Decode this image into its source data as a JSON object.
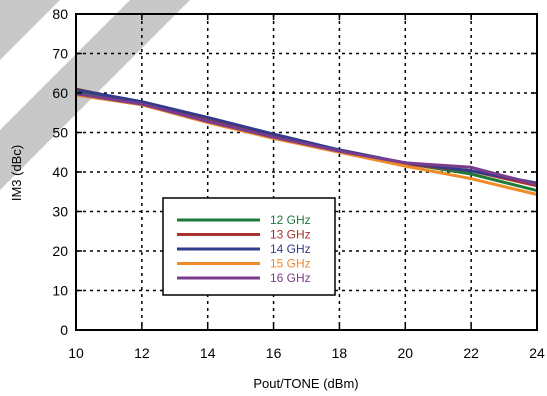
{
  "chart_data": {
    "type": "line",
    "xlabel": "Pout/TONE (dBm)",
    "ylabel": "IM3 (dBc)",
    "xlim": [
      10,
      24
    ],
    "ylim": [
      0,
      80
    ],
    "x_ticks": [
      "10",
      "12",
      "14",
      "16",
      "18",
      "20",
      "22",
      "24"
    ],
    "y_ticks": [
      "0",
      "10",
      "20",
      "30",
      "40",
      "50",
      "60",
      "70",
      "80"
    ],
    "grid": true,
    "legend_position": "lower-left",
    "series": [
      {
        "name": "12 GHz",
        "color": "#1e7a3a",
        "points": [
          [
            10,
            60.5
          ],
          [
            12,
            57
          ],
          [
            14,
            53
          ],
          [
            16,
            49
          ],
          [
            18,
            45.2
          ],
          [
            20,
            42.2
          ],
          [
            22,
            39.5
          ],
          [
            24,
            35.3
          ]
        ]
      },
      {
        "name": "13 GHz",
        "color": "#a8322c",
        "points": [
          [
            10,
            61
          ],
          [
            12,
            57.5
          ],
          [
            14,
            53
          ],
          [
            16,
            49.2
          ],
          [
            18,
            45.5
          ],
          [
            20,
            42
          ],
          [
            22,
            40.3
          ],
          [
            24,
            36.5
          ]
        ]
      },
      {
        "name": "14 GHz",
        "color": "#323c8c",
        "points": [
          [
            10,
            60.8
          ],
          [
            12,
            57.8
          ],
          [
            14,
            53.8
          ],
          [
            16,
            49.6
          ],
          [
            18,
            45.6
          ],
          [
            20,
            42.3
          ],
          [
            22,
            40.3
          ],
          [
            24,
            37.2
          ]
        ]
      },
      {
        "name": "15 GHz",
        "color": "#f08c28",
        "points": [
          [
            10,
            59.5
          ],
          [
            12,
            57
          ],
          [
            14,
            52.5
          ],
          [
            16,
            48.5
          ],
          [
            18,
            45
          ],
          [
            20,
            41.5
          ],
          [
            22,
            38.3
          ],
          [
            24,
            34.3
          ]
        ]
      },
      {
        "name": "16 GHz",
        "color": "#7a3c8c",
        "points": [
          [
            10,
            59.8
          ],
          [
            12,
            57.2
          ],
          [
            14,
            52.8
          ],
          [
            16,
            48.8
          ],
          [
            18,
            45.3
          ],
          [
            20,
            42.3
          ],
          [
            22,
            41.2
          ],
          [
            24,
            36.8
          ]
        ]
      }
    ]
  }
}
